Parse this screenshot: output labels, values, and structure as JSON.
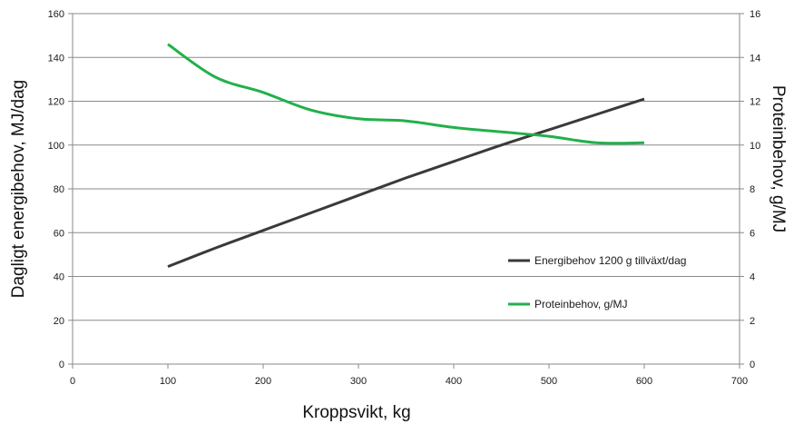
{
  "chart_data": {
    "type": "line",
    "xlabel": "Kroppsvikt, kg",
    "ylabel_left": "Dagligt energibehov, MJ/dag",
    "ylabel_right": "Proteinbehov, g/MJ",
    "xlim": [
      0,
      700
    ],
    "xticks": [
      0,
      100,
      200,
      300,
      400,
      500,
      600,
      700
    ],
    "ylim_left": [
      0,
      160
    ],
    "yticks_left": [
      0,
      20,
      40,
      60,
      80,
      100,
      120,
      140,
      160
    ],
    "ylim_right": [
      0,
      16
    ],
    "yticks_right": [
      0,
      2,
      4,
      6,
      8,
      10,
      12,
      14,
      16
    ],
    "grid": "horizontal",
    "legend_position": "right",
    "series": [
      {
        "name": "Energibehov 1200 g tillväxt/dag",
        "axis": "left",
        "color": "#3a3a3a",
        "x": [
          100,
          150,
          200,
          250,
          300,
          350,
          400,
          450,
          500,
          550,
          600
        ],
        "y": [
          44.5,
          53,
          61,
          69,
          77,
          85,
          92.5,
          100,
          107,
          114,
          121
        ]
      },
      {
        "name": "Proteinbehov, g/MJ",
        "axis": "right",
        "color": "#22b04b",
        "x": [
          100,
          150,
          200,
          250,
          300,
          350,
          400,
          450,
          500,
          550,
          600
        ],
        "y": [
          14.6,
          13.1,
          12.4,
          11.6,
          11.2,
          11.1,
          10.8,
          10.6,
          10.4,
          10.1,
          10.1
        ]
      }
    ]
  }
}
